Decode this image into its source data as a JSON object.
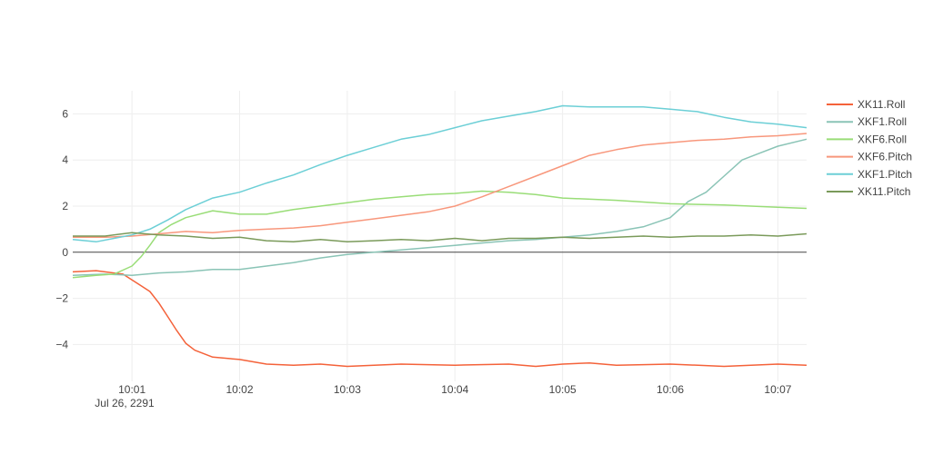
{
  "chart_data": {
    "type": "line",
    "title": "",
    "xlabel": "",
    "ylabel": "",
    "x_ticks": [
      "10:01",
      "10:02",
      "10:03",
      "10:04",
      "10:05",
      "10:06",
      "10:07"
    ],
    "x_date_label": "Jul 26, 2291",
    "xlim": [
      "2291-07-26 10:00:27",
      "2291-07-26 10:07:16"
    ],
    "y_ticks": [
      6,
      4,
      2,
      0,
      -2,
      -4
    ],
    "y_tick_labels": [
      "6",
      "4",
      "2",
      "0",
      "−2",
      "−4"
    ],
    "ylim": [
      -5.6,
      7.0
    ],
    "grid": true,
    "zero_line": true,
    "legend_position": "right",
    "series": [
      {
        "name": "XK11.Roll",
        "color": "#f4623a",
        "points": [
          [
            "2291-07-26 10:00:27",
            -0.85
          ],
          [
            "2291-07-26 10:00:40",
            -0.8
          ],
          [
            "2291-07-26 10:00:55",
            -0.95
          ],
          [
            "2291-07-26 10:01:00",
            -1.2
          ],
          [
            "2291-07-26 10:01:05",
            -1.45
          ],
          [
            "2291-07-26 10:01:10",
            -1.7
          ],
          [
            "2291-07-26 10:01:15",
            -2.2
          ],
          [
            "2291-07-26 10:01:20",
            -2.8
          ],
          [
            "2291-07-26 10:01:25",
            -3.4
          ],
          [
            "2291-07-26 10:01:30",
            -3.95
          ],
          [
            "2291-07-26 10:01:35",
            -4.25
          ],
          [
            "2291-07-26 10:01:45",
            -4.55
          ],
          [
            "2291-07-26 10:02:00",
            -4.65
          ],
          [
            "2291-07-26 10:02:15",
            -4.85
          ],
          [
            "2291-07-26 10:02:30",
            -4.9
          ],
          [
            "2291-07-26 10:02:45",
            -4.85
          ],
          [
            "2291-07-26 10:03:00",
            -4.95
          ],
          [
            "2291-07-26 10:03:30",
            -4.85
          ],
          [
            "2291-07-26 10:04:00",
            -4.9
          ],
          [
            "2291-07-26 10:04:30",
            -4.85
          ],
          [
            "2291-07-26 10:04:45",
            -4.95
          ],
          [
            "2291-07-26 10:05:00",
            -4.85
          ],
          [
            "2291-07-26 10:05:15",
            -4.8
          ],
          [
            "2291-07-26 10:05:30",
            -4.9
          ],
          [
            "2291-07-26 10:06:00",
            -4.85
          ],
          [
            "2291-07-26 10:06:30",
            -4.95
          ],
          [
            "2291-07-26 10:07:00",
            -4.85
          ],
          [
            "2291-07-26 10:07:16",
            -4.9
          ]
        ]
      },
      {
        "name": "XKF1.Roll",
        "color": "#8ac4b6",
        "points": [
          [
            "2291-07-26 10:00:27",
            -1.0
          ],
          [
            "2291-07-26 10:00:45",
            -0.95
          ],
          [
            "2291-07-26 10:01:00",
            -1.0
          ],
          [
            "2291-07-26 10:01:15",
            -0.9
          ],
          [
            "2291-07-26 10:01:30",
            -0.85
          ],
          [
            "2291-07-26 10:01:45",
            -0.75
          ],
          [
            "2291-07-26 10:02:00",
            -0.75
          ],
          [
            "2291-07-26 10:02:15",
            -0.6
          ],
          [
            "2291-07-26 10:02:30",
            -0.45
          ],
          [
            "2291-07-26 10:02:45",
            -0.25
          ],
          [
            "2291-07-26 10:03:00",
            -0.1
          ],
          [
            "2291-07-26 10:03:15",
            0.0
          ],
          [
            "2291-07-26 10:03:30",
            0.1
          ],
          [
            "2291-07-26 10:03:45",
            0.2
          ],
          [
            "2291-07-26 10:04:00",
            0.3
          ],
          [
            "2291-07-26 10:04:15",
            0.4
          ],
          [
            "2291-07-26 10:04:30",
            0.5
          ],
          [
            "2291-07-26 10:04:45",
            0.55
          ],
          [
            "2291-07-26 10:05:00",
            0.65
          ],
          [
            "2291-07-26 10:05:15",
            0.75
          ],
          [
            "2291-07-26 10:05:30",
            0.9
          ],
          [
            "2291-07-26 10:05:45",
            1.1
          ],
          [
            "2291-07-26 10:06:00",
            1.5
          ],
          [
            "2291-07-26 10:06:10",
            2.2
          ],
          [
            "2291-07-26 10:06:20",
            2.6
          ],
          [
            "2291-07-26 10:06:30",
            3.3
          ],
          [
            "2291-07-26 10:06:40",
            4.0
          ],
          [
            "2291-07-26 10:06:50",
            4.3
          ],
          [
            "2291-07-26 10:07:00",
            4.6
          ],
          [
            "2291-07-26 10:07:16",
            4.9
          ]
        ]
      },
      {
        "name": "XKF6.Roll",
        "color": "#99dd77",
        "points": [
          [
            "2291-07-26 10:00:27",
            -1.1
          ],
          [
            "2291-07-26 10:00:40",
            -1.0
          ],
          [
            "2291-07-26 10:00:50",
            -0.95
          ],
          [
            "2291-07-26 10:01:00",
            -0.6
          ],
          [
            "2291-07-26 10:01:05",
            -0.2
          ],
          [
            "2291-07-26 10:01:10",
            0.3
          ],
          [
            "2291-07-26 10:01:15",
            0.85
          ],
          [
            "2291-07-26 10:01:22",
            1.2
          ],
          [
            "2291-07-26 10:01:30",
            1.5
          ],
          [
            "2291-07-26 10:01:45",
            1.8
          ],
          [
            "2291-07-26 10:02:00",
            1.65
          ],
          [
            "2291-07-26 10:02:15",
            1.65
          ],
          [
            "2291-07-26 10:02:30",
            1.85
          ],
          [
            "2291-07-26 10:02:45",
            2.0
          ],
          [
            "2291-07-26 10:03:00",
            2.15
          ],
          [
            "2291-07-26 10:03:15",
            2.3
          ],
          [
            "2291-07-26 10:03:30",
            2.4
          ],
          [
            "2291-07-26 10:03:45",
            2.5
          ],
          [
            "2291-07-26 10:04:00",
            2.55
          ],
          [
            "2291-07-26 10:04:15",
            2.65
          ],
          [
            "2291-07-26 10:04:30",
            2.6
          ],
          [
            "2291-07-26 10:04:45",
            2.5
          ],
          [
            "2291-07-26 10:05:00",
            2.35
          ],
          [
            "2291-07-26 10:05:30",
            2.25
          ],
          [
            "2291-07-26 10:06:00",
            2.1
          ],
          [
            "2291-07-26 10:06:30",
            2.05
          ],
          [
            "2291-07-26 10:07:00",
            1.95
          ],
          [
            "2291-07-26 10:07:16",
            1.9
          ]
        ]
      },
      {
        "name": "XKF6.Pitch",
        "color": "#f8977c",
        "points": [
          [
            "2291-07-26 10:00:27",
            0.65
          ],
          [
            "2291-07-26 10:00:45",
            0.65
          ],
          [
            "2291-07-26 10:01:00",
            0.7
          ],
          [
            "2291-07-26 10:01:15",
            0.8
          ],
          [
            "2291-07-26 10:01:30",
            0.9
          ],
          [
            "2291-07-26 10:01:45",
            0.85
          ],
          [
            "2291-07-26 10:02:00",
            0.95
          ],
          [
            "2291-07-26 10:02:15",
            1.0
          ],
          [
            "2291-07-26 10:02:30",
            1.05
          ],
          [
            "2291-07-26 10:02:45",
            1.15
          ],
          [
            "2291-07-26 10:03:00",
            1.3
          ],
          [
            "2291-07-26 10:03:15",
            1.45
          ],
          [
            "2291-07-26 10:03:30",
            1.6
          ],
          [
            "2291-07-26 10:03:45",
            1.75
          ],
          [
            "2291-07-26 10:04:00",
            2.0
          ],
          [
            "2291-07-26 10:04:15",
            2.4
          ],
          [
            "2291-07-26 10:04:30",
            2.85
          ],
          [
            "2291-07-26 10:04:45",
            3.3
          ],
          [
            "2291-07-26 10:05:00",
            3.75
          ],
          [
            "2291-07-26 10:05:15",
            4.2
          ],
          [
            "2291-07-26 10:05:30",
            4.45
          ],
          [
            "2291-07-26 10:05:45",
            4.65
          ],
          [
            "2291-07-26 10:06:00",
            4.75
          ],
          [
            "2291-07-26 10:06:15",
            4.85
          ],
          [
            "2291-07-26 10:06:30",
            4.9
          ],
          [
            "2291-07-26 10:06:45",
            5.0
          ],
          [
            "2291-07-26 10:07:00",
            5.05
          ],
          [
            "2291-07-26 10:07:16",
            5.15
          ]
        ]
      },
      {
        "name": "XKF1.Pitch",
        "color": "#6ccfd6",
        "points": [
          [
            "2291-07-26 10:00:27",
            0.55
          ],
          [
            "2291-07-26 10:00:40",
            0.45
          ],
          [
            "2291-07-26 10:00:50",
            0.6
          ],
          [
            "2291-07-26 10:01:00",
            0.75
          ],
          [
            "2291-07-26 10:01:10",
            1.0
          ],
          [
            "2291-07-26 10:01:20",
            1.4
          ],
          [
            "2291-07-26 10:01:30",
            1.85
          ],
          [
            "2291-07-26 10:01:45",
            2.35
          ],
          [
            "2291-07-26 10:02:00",
            2.6
          ],
          [
            "2291-07-26 10:02:15",
            3.0
          ],
          [
            "2291-07-26 10:02:30",
            3.35
          ],
          [
            "2291-07-26 10:02:45",
            3.8
          ],
          [
            "2291-07-26 10:03:00",
            4.2
          ],
          [
            "2291-07-26 10:03:15",
            4.55
          ],
          [
            "2291-07-26 10:03:30",
            4.9
          ],
          [
            "2291-07-26 10:03:45",
            5.1
          ],
          [
            "2291-07-26 10:04:00",
            5.4
          ],
          [
            "2291-07-26 10:04:15",
            5.7
          ],
          [
            "2291-07-26 10:04:30",
            5.9
          ],
          [
            "2291-07-26 10:04:45",
            6.1
          ],
          [
            "2291-07-26 10:05:00",
            6.35
          ],
          [
            "2291-07-26 10:05:15",
            6.3
          ],
          [
            "2291-07-26 10:05:30",
            6.3
          ],
          [
            "2291-07-26 10:05:45",
            6.3
          ],
          [
            "2291-07-26 10:06:00",
            6.2
          ],
          [
            "2291-07-26 10:06:15",
            6.1
          ],
          [
            "2291-07-26 10:06:30",
            5.85
          ],
          [
            "2291-07-26 10:06:45",
            5.65
          ],
          [
            "2291-07-26 10:07:00",
            5.55
          ],
          [
            "2291-07-26 10:07:16",
            5.4
          ]
        ]
      },
      {
        "name": "XK11.Pitch",
        "color": "#7a9a5a",
        "points": [
          [
            "2291-07-26 10:00:27",
            0.7
          ],
          [
            "2291-07-26 10:00:45",
            0.7
          ],
          [
            "2291-07-26 10:01:00",
            0.85
          ],
          [
            "2291-07-26 10:01:15",
            0.75
          ],
          [
            "2291-07-26 10:01:30",
            0.7
          ],
          [
            "2291-07-26 10:01:45",
            0.6
          ],
          [
            "2291-07-26 10:02:00",
            0.65
          ],
          [
            "2291-07-26 10:02:15",
            0.5
          ],
          [
            "2291-07-26 10:02:30",
            0.45
          ],
          [
            "2291-07-26 10:02:45",
            0.55
          ],
          [
            "2291-07-26 10:03:00",
            0.45
          ],
          [
            "2291-07-26 10:03:15",
            0.5
          ],
          [
            "2291-07-26 10:03:30",
            0.55
          ],
          [
            "2291-07-26 10:03:45",
            0.5
          ],
          [
            "2291-07-26 10:04:00",
            0.6
          ],
          [
            "2291-07-26 10:04:15",
            0.5
          ],
          [
            "2291-07-26 10:04:30",
            0.6
          ],
          [
            "2291-07-26 10:04:45",
            0.6
          ],
          [
            "2291-07-26 10:05:00",
            0.65
          ],
          [
            "2291-07-26 10:05:15",
            0.6
          ],
          [
            "2291-07-26 10:05:30",
            0.65
          ],
          [
            "2291-07-26 10:05:45",
            0.7
          ],
          [
            "2291-07-26 10:06:00",
            0.65
          ],
          [
            "2291-07-26 10:06:15",
            0.7
          ],
          [
            "2291-07-26 10:06:30",
            0.7
          ],
          [
            "2291-07-26 10:06:45",
            0.75
          ],
          [
            "2291-07-26 10:07:00",
            0.7
          ],
          [
            "2291-07-26 10:07:16",
            0.8
          ]
        ]
      }
    ]
  }
}
